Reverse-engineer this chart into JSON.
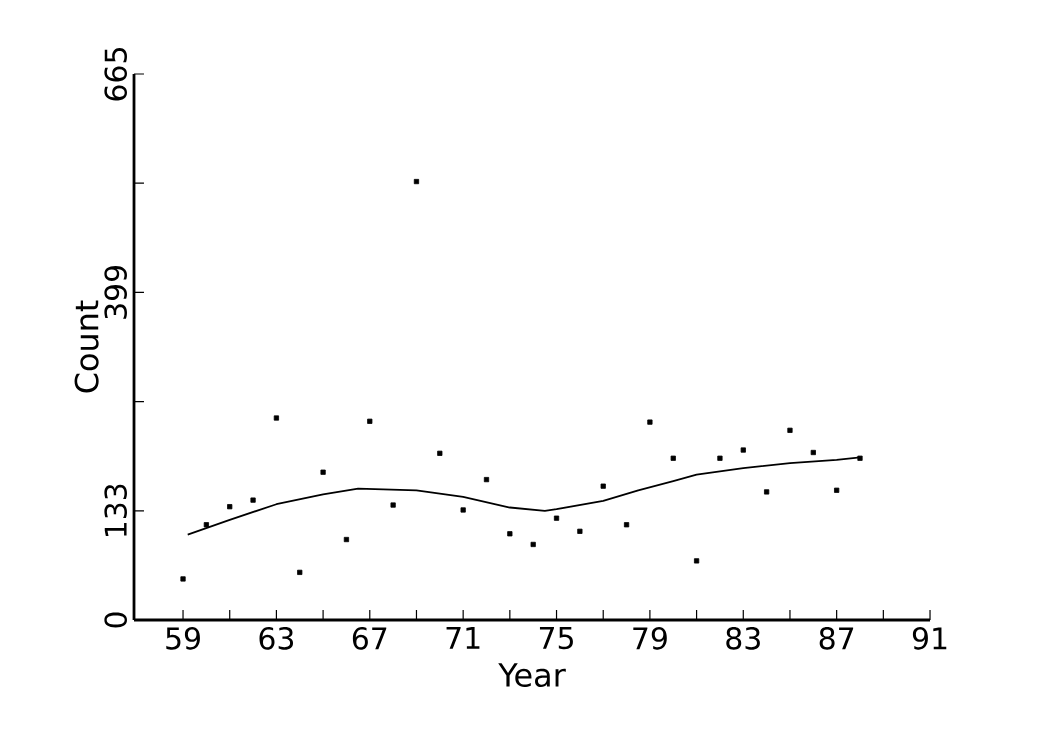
{
  "chart_data": {
    "type": "scatter",
    "xlabel": "Year",
    "ylabel": "Count",
    "xlim": [
      56.9,
      91
    ],
    "ylim": [
      0,
      665
    ],
    "xticks": [
      59,
      {
        "value": 61,
        "label": null
      },
      63,
      {
        "value": 65,
        "label": null
      },
      67,
      {
        "value": 69,
        "label": null
      },
      71,
      {
        "value": 73,
        "label": null
      },
      75,
      {
        "value": 77,
        "label": null
      },
      79,
      {
        "value": 81,
        "label": null
      },
      83,
      {
        "value": 85,
        "label": null
      },
      87,
      {
        "value": 89,
        "label": null
      },
      91
    ],
    "yticks": [
      0,
      133,
      {
        "value": 266,
        "label": null
      },
      399,
      {
        "value": 532,
        "label": null
      },
      665
    ],
    "marker": "square",
    "series": [
      {
        "color": "#000000",
        "x": [
          59,
          60,
          61,
          62,
          63,
          64,
          65,
          66,
          67,
          68,
          69,
          70,
          71,
          72,
          73,
          74,
          75,
          76,
          77,
          78,
          79,
          80,
          81,
          82,
          83,
          84,
          85,
          86,
          87,
          88
        ],
        "values": [
          50,
          116,
          138,
          146,
          246,
          58,
          180,
          98,
          242,
          140,
          534,
          203,
          134,
          171,
          105,
          92,
          124,
          108,
          163,
          116,
          241,
          197,
          72,
          197,
          207,
          156,
          231,
          204,
          158,
          197
        ]
      },
      {
        "type": "line",
        "color": "#000000",
        "marker": "none",
        "x": [
          59.2,
          61,
          63,
          65,
          66.5,
          69,
          71,
          73,
          74.5,
          75,
          77,
          78.5,
          80,
          81,
          83,
          85,
          87,
          88
        ],
        "values": [
          104,
          122,
          141,
          153,
          160,
          158,
          150,
          137,
          133,
          135,
          145,
          158,
          169,
          177,
          185,
          191,
          195,
          198
        ]
      }
    ]
  }
}
